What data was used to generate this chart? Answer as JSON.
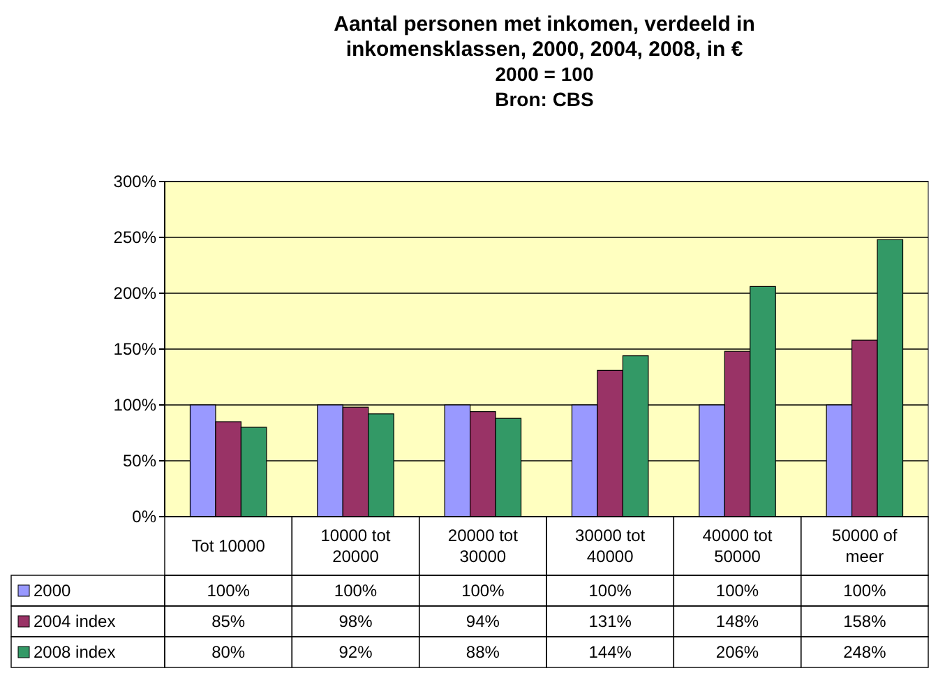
{
  "chart_data": {
    "type": "bar",
    "title": "Aantal personen met inkomen, verdeeld in inkomensklassen, 2000, 2004, 2008, in €",
    "subtitle": "2000 = 100",
    "annotations": [
      "Bron: CBS"
    ],
    "categories": [
      "Tot 10000",
      "10000 tot 20000",
      "20000 tot 30000",
      "30000 tot 40000",
      "40000 tot 50000",
      "50000 of meer"
    ],
    "series": [
      {
        "name": "2000",
        "color": "#9999ff",
        "values": [
          100,
          100,
          100,
          100,
          100,
          100
        ],
        "value_labels": [
          "100%",
          "100%",
          "100%",
          "100%",
          "100%",
          "100%"
        ]
      },
      {
        "name": "2004 index",
        "color": "#993366",
        "values": [
          85,
          98,
          94,
          131,
          148,
          158
        ],
        "value_labels": [
          "85%",
          "98%",
          "94%",
          "131%",
          "148%",
          "158%"
        ]
      },
      {
        "name": "2008 index",
        "color": "#339966",
        "values": [
          80,
          92,
          88,
          144,
          206,
          248
        ],
        "value_labels": [
          "80%",
          "92%",
          "88%",
          "144%",
          "206%",
          "248%"
        ]
      }
    ],
    "ylim": [
      0,
      300
    ],
    "yticks": [
      {
        "value": 0,
        "label": "0%"
      },
      {
        "value": 50,
        "label": "50%"
      },
      {
        "value": 100,
        "label": "100%"
      },
      {
        "value": 150,
        "label": "150%"
      },
      {
        "value": 200,
        "label": "200%"
      },
      {
        "value": 250,
        "label": "250%"
      },
      {
        "value": 300,
        "label": "300%"
      }
    ],
    "grid": "y",
    "legend": "bottom"
  }
}
